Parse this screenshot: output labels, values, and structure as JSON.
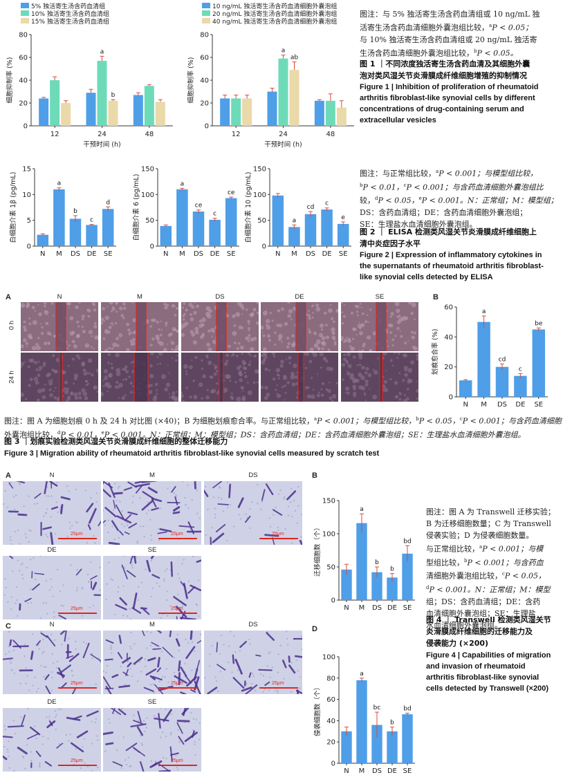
{
  "figure1": {
    "chartA": {
      "type": "bar",
      "legend": [
        "5% 独活寄生汤含药血清组",
        "10% 独活寄生汤含药血清组",
        "15% 独活寄生汤含药血清组"
      ],
      "colors": [
        "#4f9ee8",
        "#6ddbb8",
        "#ead9a9"
      ],
      "ylabel": "细胞抑制率 (%)",
      "xlabel": "干预时间 (h)",
      "categories": [
        "12",
        "24",
        "48"
      ],
      "yticks": [
        "0",
        "20",
        "40",
        "60",
        "80"
      ],
      "ylim": [
        0,
        80
      ],
      "series": [
        {
          "name": "5% 独活寄生汤含药血清组",
          "values": [
            24,
            29,
            27
          ],
          "err": [
            1,
            3,
            2
          ]
        },
        {
          "name": "10% 独活寄生汤含药血清组",
          "values": [
            40,
            57,
            35
          ],
          "err": [
            3,
            4,
            1
          ]
        },
        {
          "name": "15% 独活寄生汤含药血清组",
          "values": [
            20,
            22,
            21
          ],
          "err": [
            2,
            1,
            2
          ]
        }
      ],
      "annotations": [
        {
          "series": 1,
          "cat": 1,
          "text": "a"
        },
        {
          "series": 2,
          "cat": 1,
          "text": "b"
        }
      ]
    },
    "chartB": {
      "type": "bar",
      "legend": [
        "10 ng/mL 独活寄生汤含药血清细胞外囊泡组",
        "20 ng/mL 独活寄生汤含药血清细胞外囊泡组",
        "40 ng/mL 独活寄生汤含药血清细胞外囊泡组"
      ],
      "colors": [
        "#4f9ee8",
        "#6ddbb8",
        "#ead9a9"
      ],
      "ylabel": "细胞抑制率 (%)",
      "xlabel": "干预时间 (h)",
      "categories": [
        "12",
        "24",
        "48"
      ],
      "yticks": [
        "0",
        "20",
        "40",
        "60",
        "80"
      ],
      "ylim": [
        0,
        80
      ],
      "series": [
        {
          "name": "10 ng/mL 独活寄生汤含药血清细胞外囊泡组",
          "values": [
            24,
            30,
            22
          ],
          "err": [
            3,
            3,
            1
          ]
        },
        {
          "name": "20 ng/mL 独活寄生汤含药血清细胞外囊泡组",
          "values": [
            24,
            59,
            22
          ],
          "err": [
            3,
            3,
            6
          ]
        },
        {
          "name": "40 ng/mL 独活寄生汤含药血清细胞外囊泡组",
          "values": [
            24,
            49,
            16
          ],
          "err": [
            3,
            7,
            6
          ]
        }
      ],
      "annotations": [
        {
          "series": 1,
          "cat": 1,
          "text": "a"
        },
        {
          "series": 2,
          "cat": 1,
          "text": "ab"
        }
      ]
    },
    "note": [
      "图注：与 5% 独活寄生汤含药血清组或 10 ng/mL 独",
      "活寄生汤含药血清细胞外囊泡组比较，",
      "与 10% 独活寄生汤含药血清组或 20 ng/mL 独活寄",
      "生汤含药血清细胞外囊泡组比较，"
    ],
    "note_sup": [
      "a",
      "P < 0.05；",
      "b",
      "P < 0.05。"
    ],
    "title_cn": [
      "图 1 ｜不同浓度独活寄生汤含药血清及其细胞外囊",
      "泡对类风湿关节炎滑膜成纤维细胞增殖的抑制情况"
    ],
    "title_en": [
      "Figure 1 | Inhibition of proliferation of rheumatoid",
      "arthritis fibroblast-like synovial cells by different",
      "concentrations of drug-containing serum and",
      "extracellular vesicles"
    ]
  },
  "figure2": {
    "categories": [
      "N",
      "M",
      "DS",
      "DE",
      "SE"
    ],
    "color": "#4f9ee8",
    "charts": [
      {
        "ylabel": "白细胞介素 1β (pg/mL)",
        "yticks": [
          "0",
          "5",
          "10",
          "15"
        ],
        "ylim": [
          0,
          15
        ],
        "values": [
          2.2,
          11,
          5.3,
          4.1,
          7.2
        ],
        "err": [
          0.2,
          0.3,
          0.6,
          0.1,
          0.4
        ],
        "labels": [
          "",
          "a",
          "b",
          "c",
          "d"
        ]
      },
      {
        "ylabel": "白细胞介素 6 (pg/mL)",
        "yticks": [
          "0",
          "50",
          "100",
          "150"
        ],
        "ylim": [
          0,
          150
        ],
        "values": [
          39,
          110,
          67,
          51,
          93
        ],
        "err": [
          2,
          2,
          3,
          3,
          2
        ],
        "labels": [
          "",
          "a",
          "ce",
          "c",
          "ce"
        ]
      },
      {
        "ylabel": "白细胞介素 10 (pg/mL)",
        "yticks": [
          "0",
          "50",
          "100",
          "150"
        ],
        "ylim": [
          0,
          150
        ],
        "values": [
          98,
          37,
          62,
          71,
          43
        ],
        "err": [
          4,
          4,
          5,
          3,
          4
        ],
        "labels": [
          "",
          "a",
          "cd",
          "c",
          "e"
        ]
      }
    ],
    "note": [
      "图注：与正常组比较，",
      "P < 0.001；与模型组比较，",
      "P < 0.01，",
      "P < 0.001；与含药血清细胞外囊泡组比",
      "较，",
      "P < 0.05，",
      "P < 0.001。N：正常组；M：模型组；",
      "DS：含药血清组；DE：含药血清细胞外囊泡组；",
      "SE：生理盐水血清细胞外囊泡组。"
    ],
    "title_cn": [
      "图 2 ｜ ELISA 检测类风湿关节炎滑膜成纤维细胞上",
      "清中炎症因子水平"
    ],
    "title_en": [
      "Figure 2 | Expression of inflammatory cytokines in",
      "the supernatants of rheumatoid arthritis fibroblast-",
      "like synovial cells detected by ELISA"
    ]
  },
  "figure3": {
    "panelA": "A",
    "panelB": "B",
    "cols": [
      "N",
      "M",
      "DS",
      "DE",
      "SE"
    ],
    "rows": [
      "0 h",
      "24 h"
    ],
    "chart": {
      "ylabel": "划痕愈合率 (%)",
      "yticks": [
        "0",
        "20",
        "40",
        "60"
      ],
      "ylim": [
        0,
        60
      ],
      "categories": [
        "N",
        "M",
        "DS",
        "DE",
        "SE"
      ],
      "values": [
        11,
        50,
        20,
        14,
        45
      ],
      "err": [
        0.5,
        4,
        2,
        1.5,
        1
      ],
      "labels": [
        "",
        "a",
        "cd",
        "c",
        "be"
      ],
      "color": "#4f9ee8"
    },
    "note": [
      "图注：图 A 为细胞划痕 0 h 及 24 h 对比图 (×40)；B 为细胞划痕愈合率。与正常组比较，",
      "P < 0.001；与模型组比较，",
      "P < 0.05，",
      "P < 0.001；与含药血清细胞",
      "外囊泡组比较，",
      "P < 0.01，",
      "P < 0.001。N：正常组；M：模型组；DS：含药血清组；DE：含药血清细胞外囊泡组；SE：生理盐水血清细胞外囊泡组。"
    ],
    "title_cn": "图 3 ｜划痕实验检测类风湿关节炎滑膜成纤维细胞的整体迁移能力",
    "title_en": "Figure 3 | Migration ability of rheumatoid arthritis fibroblast-like synovial cells measured by scratch test"
  },
  "figure4": {
    "panelA": "A",
    "panelB": "B",
    "panelC": "C",
    "panelD": "D",
    "cols": [
      "N",
      "M",
      "DS",
      "DE",
      "SE"
    ],
    "scale_bar": "25μm",
    "chartB": {
      "ylabel": "迁移细胞数（个）",
      "yticks": [
        "0",
        "50",
        "100",
        "150"
      ],
      "ylim": [
        0,
        150
      ],
      "categories": [
        "N",
        "M",
        "DS",
        "DE",
        "SE"
      ],
      "values": [
        46,
        116,
        42,
        34,
        70
      ],
      "err": [
        8,
        14,
        8,
        6,
        12
      ],
      "labels": [
        "",
        "a",
        "b",
        "b",
        "bd"
      ],
      "color": "#4f9ee8"
    },
    "chartD": {
      "ylabel": "侵袭细胞数（个）",
      "yticks": [
        "0",
        "20",
        "40",
        "60",
        "80",
        "100"
      ],
      "ylim": [
        0,
        100
      ],
      "categories": [
        "N",
        "M",
        "DS",
        "DE",
        "SE"
      ],
      "values": [
        30,
        78,
        36,
        30,
        46
      ],
      "err": [
        4,
        2,
        12,
        4,
        1
      ],
      "labels": [
        "",
        "a",
        "bc",
        "b",
        "bd"
      ],
      "color": "#4f9ee8"
    },
    "note": [
      "图注：图 A 为 Transwell 迁移实验；",
      "B 为迁移细胞数量；C 为 Transwell",
      "侵袭实验；D 为侵袭细胞数量。",
      "与正常组比较，",
      "P < 0.001；与模",
      "型组比较，",
      "P < 0.001；与含药血",
      "清细胞外囊泡组比较，",
      "P < 0.05，",
      "P < 0.001。N：正常组；M：模型",
      "组；DS：含药血清组；DE：含药",
      "血清细胞外囊泡组；SE：生理盐",
      "水血清细胞外囊泡组。"
    ],
    "title_cn": [
      "图 4 ｜ Transwell 检测类风湿关节",
      "炎滑膜成纤维细胞的迁移能力及",
      "侵袭能力 (×200)"
    ],
    "title_en": [
      "Figure 4 | Capabilities of migration",
      "and invasion of rheumatoid",
      "arthritis fibroblast-like synovial",
      "cells detected by Transwell (×200)"
    ]
  }
}
